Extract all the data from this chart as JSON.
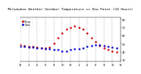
{
  "title": "Milwaukee Weather Outdoor Temperature vs Dew Point (24 Hours)",
  "title_fontsize": 3.5,
  "background_color": "#ffffff",
  "temp_color": "#cc0000",
  "dew_color": "#0000cc",
  "grid_color": "#888888",
  "ylim": [
    28,
    82
  ],
  "xlim": [
    0,
    24
  ],
  "yticks": [
    30,
    40,
    50,
    60,
    70,
    80
  ],
  "ytick_labels": [
    "30",
    "40",
    "50",
    "60",
    "70",
    "80"
  ],
  "xtick_positions": [
    0,
    2,
    4,
    6,
    8,
    10,
    12,
    14,
    16,
    18,
    20,
    22,
    24
  ],
  "xtick_labels": [
    "12",
    "2",
    "4",
    "6",
    "8",
    "10",
    "12",
    "2",
    "4",
    "6",
    "8",
    "10",
    "12"
  ],
  "hours": [
    0,
    1,
    2,
    3,
    4,
    5,
    6,
    7,
    8,
    9,
    10,
    11,
    12,
    13,
    14,
    15,
    16,
    17,
    18,
    19,
    20,
    21,
    22,
    23
  ],
  "temp": [
    48,
    47,
    46,
    46,
    45,
    44,
    44,
    45,
    50,
    57,
    63,
    68,
    70,
    72,
    70,
    68,
    63,
    57,
    52,
    47,
    44,
    42,
    41,
    40
  ],
  "dew": [
    46,
    46,
    45,
    45,
    44,
    44,
    43,
    43,
    42,
    42,
    41,
    41,
    42,
    43,
    43,
    44,
    46,
    47,
    48,
    48,
    47,
    46,
    45,
    44
  ]
}
